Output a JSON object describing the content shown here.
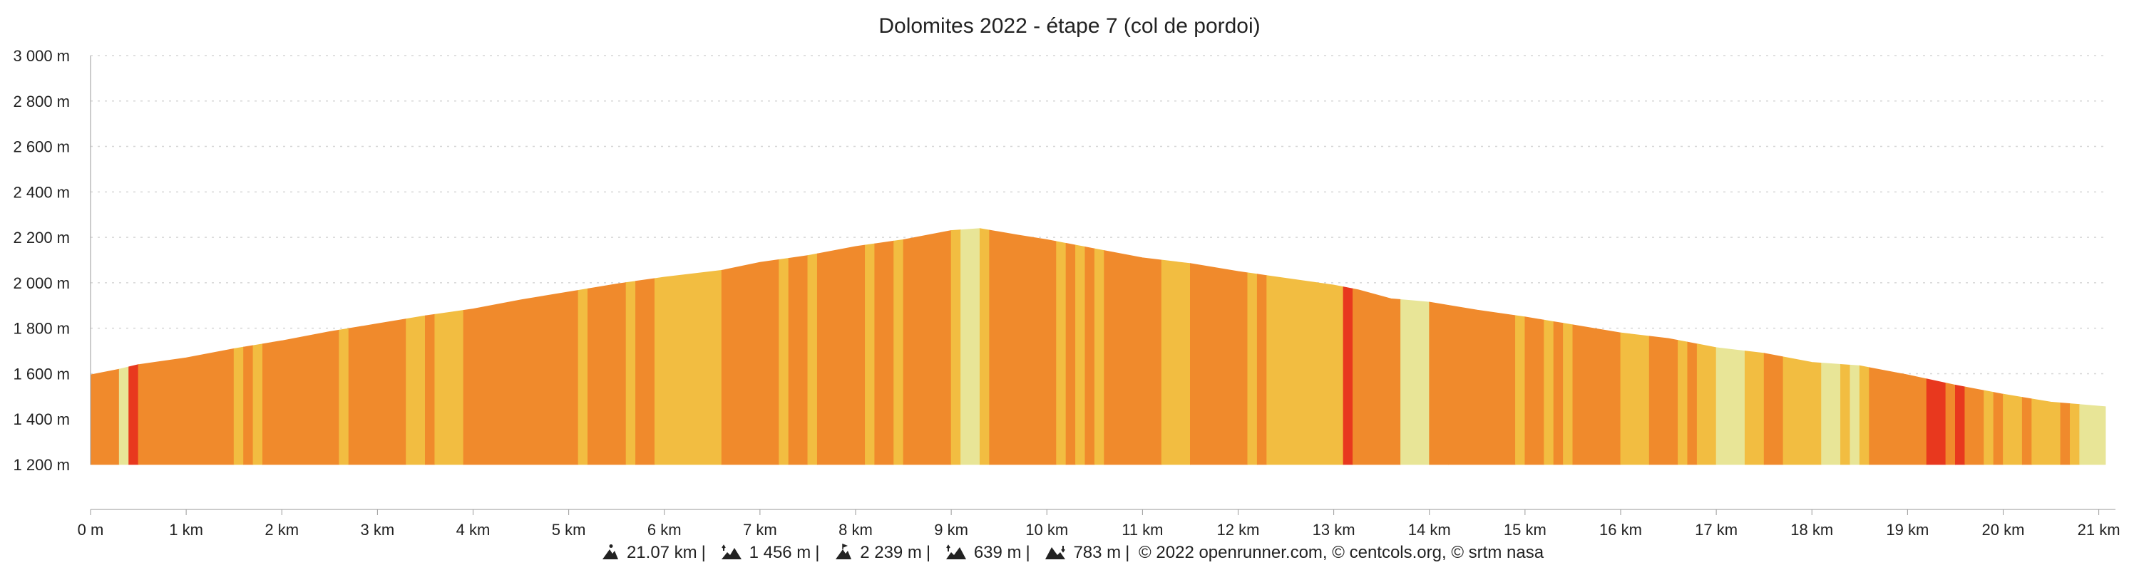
{
  "colors": {
    "background": "#ffffff",
    "grid": "#d6d6d6",
    "axis": "#999999",
    "grade_0_3": "#e8e597",
    "grade_3_6": "#f2bd41",
    "grade_6_9": "#f08a2c",
    "grade_9_12": "#e8381e"
  },
  "chart_data": {
    "type": "area",
    "title": "Dolomites 2022 - étape 7 (col de pordoi)",
    "xlabel": "",
    "ylabel": "",
    "xlim": [
      0,
      21.07
    ],
    "ylim": [
      1200,
      3000
    ],
    "y_baseline": 1200,
    "grid": "horizontal dotted",
    "x_ticks": [
      {
        "value": 0,
        "label": "0 m"
      },
      {
        "value": 1,
        "label": "1 km"
      },
      {
        "value": 2,
        "label": "2 km"
      },
      {
        "value": 3,
        "label": "3 km"
      },
      {
        "value": 4,
        "label": "4 km"
      },
      {
        "value": 5,
        "label": "5 km"
      },
      {
        "value": 6,
        "label": "6 km"
      },
      {
        "value": 7,
        "label": "7 km"
      },
      {
        "value": 8,
        "label": "8 km"
      },
      {
        "value": 9,
        "label": "9 km"
      },
      {
        "value": 10,
        "label": "10 km"
      },
      {
        "value": 11,
        "label": "11 km"
      },
      {
        "value": 12,
        "label": "12 km"
      },
      {
        "value": 13,
        "label": "13 km"
      },
      {
        "value": 14,
        "label": "14 km"
      },
      {
        "value": 15,
        "label": "15 km"
      },
      {
        "value": 16,
        "label": "16 km"
      },
      {
        "value": 17,
        "label": "17 km"
      },
      {
        "value": 18,
        "label": "18 km"
      },
      {
        "value": 19,
        "label": "19 km"
      },
      {
        "value": 20,
        "label": "20 km"
      },
      {
        "value": 21,
        "label": "21 km"
      }
    ],
    "y_ticks": [
      {
        "value": 1200,
        "label": "1 200 m"
      },
      {
        "value": 1400,
        "label": "1 400 m"
      },
      {
        "value": 1600,
        "label": "1 600 m"
      },
      {
        "value": 1800,
        "label": "1 800 m"
      },
      {
        "value": 2000,
        "label": "2 000 m"
      },
      {
        "value": 2200,
        "label": "2 200 m"
      },
      {
        "value": 2400,
        "label": "2 400 m"
      },
      {
        "value": 2600,
        "label": "2 600 m"
      },
      {
        "value": 2800,
        "label": "2 800 m"
      },
      {
        "value": 3000,
        "label": "3 000 m"
      }
    ],
    "profile": [
      {
        "km": 0.0,
        "ele": 1595
      },
      {
        "km": 0.3,
        "ele": 1620
      },
      {
        "km": 0.5,
        "ele": 1640
      },
      {
        "km": 1.0,
        "ele": 1670
      },
      {
        "km": 1.5,
        "ele": 1710
      },
      {
        "km": 2.0,
        "ele": 1745
      },
      {
        "km": 2.5,
        "ele": 1785
      },
      {
        "km": 3.0,
        "ele": 1820
      },
      {
        "km": 3.5,
        "ele": 1855
      },
      {
        "km": 4.0,
        "ele": 1885
      },
      {
        "km": 4.5,
        "ele": 1925
      },
      {
        "km": 5.0,
        "ele": 1960
      },
      {
        "km": 5.5,
        "ele": 1995
      },
      {
        "km": 6.0,
        "ele": 2025
      },
      {
        "km": 6.6,
        "ele": 2055
      },
      {
        "km": 7.0,
        "ele": 2090
      },
      {
        "km": 7.5,
        "ele": 2120
      },
      {
        "km": 8.0,
        "ele": 2160
      },
      {
        "km": 8.5,
        "ele": 2190
      },
      {
        "km": 9.0,
        "ele": 2230
      },
      {
        "km": 9.3,
        "ele": 2239
      },
      {
        "km": 9.7,
        "ele": 2210
      },
      {
        "km": 10.0,
        "ele": 2190
      },
      {
        "km": 10.5,
        "ele": 2150
      },
      {
        "km": 11.0,
        "ele": 2110
      },
      {
        "km": 11.5,
        "ele": 2085
      },
      {
        "km": 12.0,
        "ele": 2050
      },
      {
        "km": 12.5,
        "ele": 2020
      },
      {
        "km": 13.0,
        "ele": 1990
      },
      {
        "km": 13.25,
        "ele": 1970
      },
      {
        "km": 13.6,
        "ele": 1930
      },
      {
        "km": 14.0,
        "ele": 1915
      },
      {
        "km": 14.5,
        "ele": 1880
      },
      {
        "km": 15.0,
        "ele": 1850
      },
      {
        "km": 15.5,
        "ele": 1815
      },
      {
        "km": 16.0,
        "ele": 1780
      },
      {
        "km": 16.5,
        "ele": 1755
      },
      {
        "km": 17.0,
        "ele": 1715
      },
      {
        "km": 17.5,
        "ele": 1690
      },
      {
        "km": 18.0,
        "ele": 1650
      },
      {
        "km": 18.5,
        "ele": 1635
      },
      {
        "km": 19.0,
        "ele": 1595
      },
      {
        "km": 19.5,
        "ele": 1550
      },
      {
        "km": 20.0,
        "ele": 1510
      },
      {
        "km": 20.5,
        "ele": 1475
      },
      {
        "km": 21.07,
        "ele": 1455
      }
    ],
    "segments": [
      {
        "start": 0.0,
        "end": 0.3,
        "grade": "grade_6_9"
      },
      {
        "start": 0.3,
        "end": 0.4,
        "grade": "grade_0_3"
      },
      {
        "start": 0.4,
        "end": 0.5,
        "grade": "grade_9_12"
      },
      {
        "start": 0.5,
        "end": 1.5,
        "grade": "grade_6_9"
      },
      {
        "start": 1.5,
        "end": 1.6,
        "grade": "grade_3_6"
      },
      {
        "start": 1.6,
        "end": 1.7,
        "grade": "grade_6_9"
      },
      {
        "start": 1.7,
        "end": 1.8,
        "grade": "grade_3_6"
      },
      {
        "start": 1.8,
        "end": 2.6,
        "grade": "grade_6_9"
      },
      {
        "start": 2.6,
        "end": 2.7,
        "grade": "grade_3_6"
      },
      {
        "start": 2.7,
        "end": 3.3,
        "grade": "grade_6_9"
      },
      {
        "start": 3.3,
        "end": 3.5,
        "grade": "grade_3_6"
      },
      {
        "start": 3.5,
        "end": 3.6,
        "grade": "grade_6_9"
      },
      {
        "start": 3.6,
        "end": 3.9,
        "grade": "grade_3_6"
      },
      {
        "start": 3.9,
        "end": 5.1,
        "grade": "grade_6_9"
      },
      {
        "start": 5.1,
        "end": 5.2,
        "grade": "grade_3_6"
      },
      {
        "start": 5.2,
        "end": 5.6,
        "grade": "grade_6_9"
      },
      {
        "start": 5.6,
        "end": 5.7,
        "grade": "grade_3_6"
      },
      {
        "start": 5.7,
        "end": 5.9,
        "grade": "grade_6_9"
      },
      {
        "start": 5.9,
        "end": 6.6,
        "grade": "grade_3_6"
      },
      {
        "start": 6.6,
        "end": 7.2,
        "grade": "grade_6_9"
      },
      {
        "start": 7.2,
        "end": 7.3,
        "grade": "grade_3_6"
      },
      {
        "start": 7.3,
        "end": 7.5,
        "grade": "grade_6_9"
      },
      {
        "start": 7.5,
        "end": 7.6,
        "grade": "grade_3_6"
      },
      {
        "start": 7.6,
        "end": 8.1,
        "grade": "grade_6_9"
      },
      {
        "start": 8.1,
        "end": 8.2,
        "grade": "grade_3_6"
      },
      {
        "start": 8.2,
        "end": 8.4,
        "grade": "grade_6_9"
      },
      {
        "start": 8.4,
        "end": 8.5,
        "grade": "grade_3_6"
      },
      {
        "start": 8.5,
        "end": 9.0,
        "grade": "grade_6_9"
      },
      {
        "start": 9.0,
        "end": 9.1,
        "grade": "grade_3_6"
      },
      {
        "start": 9.1,
        "end": 9.3,
        "grade": "grade_0_3"
      },
      {
        "start": 9.3,
        "end": 9.4,
        "grade": "grade_3_6"
      },
      {
        "start": 9.4,
        "end": 10.1,
        "grade": "grade_6_9"
      },
      {
        "start": 10.1,
        "end": 10.2,
        "grade": "grade_3_6"
      },
      {
        "start": 10.2,
        "end": 10.3,
        "grade": "grade_6_9"
      },
      {
        "start": 10.3,
        "end": 10.4,
        "grade": "grade_3_6"
      },
      {
        "start": 10.4,
        "end": 10.5,
        "grade": "grade_6_9"
      },
      {
        "start": 10.5,
        "end": 10.6,
        "grade": "grade_3_6"
      },
      {
        "start": 10.6,
        "end": 11.2,
        "grade": "grade_6_9"
      },
      {
        "start": 11.2,
        "end": 11.5,
        "grade": "grade_3_6"
      },
      {
        "start": 11.5,
        "end": 12.1,
        "grade": "grade_6_9"
      },
      {
        "start": 12.1,
        "end": 12.2,
        "grade": "grade_3_6"
      },
      {
        "start": 12.2,
        "end": 12.3,
        "grade": "grade_6_9"
      },
      {
        "start": 12.3,
        "end": 13.1,
        "grade": "grade_3_6"
      },
      {
        "start": 13.1,
        "end": 13.2,
        "grade": "grade_9_12"
      },
      {
        "start": 13.2,
        "end": 13.7,
        "grade": "grade_6_9"
      },
      {
        "start": 13.7,
        "end": 14.0,
        "grade": "grade_0_3"
      },
      {
        "start": 14.0,
        "end": 14.2,
        "grade": "grade_6_9"
      },
      {
        "start": 14.2,
        "end": 14.9,
        "grade": "grade_6_9"
      },
      {
        "start": 14.9,
        "end": 15.0,
        "grade": "grade_3_6"
      },
      {
        "start": 15.0,
        "end": 15.2,
        "grade": "grade_6_9"
      },
      {
        "start": 15.2,
        "end": 15.3,
        "grade": "grade_3_6"
      },
      {
        "start": 15.3,
        "end": 15.4,
        "grade": "grade_6_9"
      },
      {
        "start": 15.4,
        "end": 15.5,
        "grade": "grade_3_6"
      },
      {
        "start": 15.5,
        "end": 16.0,
        "grade": "grade_6_9"
      },
      {
        "start": 16.0,
        "end": 16.3,
        "grade": "grade_3_6"
      },
      {
        "start": 16.3,
        "end": 16.6,
        "grade": "grade_6_9"
      },
      {
        "start": 16.6,
        "end": 16.7,
        "grade": "grade_3_6"
      },
      {
        "start": 16.7,
        "end": 16.8,
        "grade": "grade_6_9"
      },
      {
        "start": 16.8,
        "end": 17.0,
        "grade": "grade_3_6"
      },
      {
        "start": 17.0,
        "end": 17.3,
        "grade": "grade_0_3"
      },
      {
        "start": 17.3,
        "end": 17.5,
        "grade": "grade_3_6"
      },
      {
        "start": 17.5,
        "end": 17.7,
        "grade": "grade_6_9"
      },
      {
        "start": 17.7,
        "end": 18.1,
        "grade": "grade_3_6"
      },
      {
        "start": 18.1,
        "end": 18.3,
        "grade": "grade_0_3"
      },
      {
        "start": 18.3,
        "end": 18.4,
        "grade": "grade_3_6"
      },
      {
        "start": 18.4,
        "end": 18.5,
        "grade": "grade_0_3"
      },
      {
        "start": 18.5,
        "end": 18.6,
        "grade": "grade_3_6"
      },
      {
        "start": 18.6,
        "end": 19.2,
        "grade": "grade_6_9"
      },
      {
        "start": 19.2,
        "end": 19.4,
        "grade": "grade_9_12"
      },
      {
        "start": 19.4,
        "end": 19.5,
        "grade": "grade_6_9"
      },
      {
        "start": 19.5,
        "end": 19.6,
        "grade": "grade_9_12"
      },
      {
        "start": 19.6,
        "end": 19.8,
        "grade": "grade_6_9"
      },
      {
        "start": 19.8,
        "end": 19.9,
        "grade": "grade_3_6"
      },
      {
        "start": 19.9,
        "end": 20.0,
        "grade": "grade_6_9"
      },
      {
        "start": 20.0,
        "end": 20.2,
        "grade": "grade_3_6"
      },
      {
        "start": 20.2,
        "end": 20.3,
        "grade": "grade_6_9"
      },
      {
        "start": 20.3,
        "end": 20.6,
        "grade": "grade_3_6"
      },
      {
        "start": 20.6,
        "end": 20.7,
        "grade": "grade_6_9"
      },
      {
        "start": 20.7,
        "end": 20.8,
        "grade": "grade_3_6"
      },
      {
        "start": 20.8,
        "end": 21.07,
        "grade": "grade_0_3"
      }
    ]
  },
  "footer": {
    "distance": "21.07 km",
    "elevation_gain": "1 456 m",
    "max_altitude": "2 239 m",
    "total_climb": "639 m",
    "total_descent": "783 m",
    "credits": "© 2022 openrunner.com, © centcols.org, © srtm nasa",
    "icon_distance": "hiker-icon",
    "icon_gain": "mountain-up-icon",
    "icon_max": "summit-icon",
    "icon_climb": "ascent-icon",
    "icon_descent": "descent-icon"
  }
}
